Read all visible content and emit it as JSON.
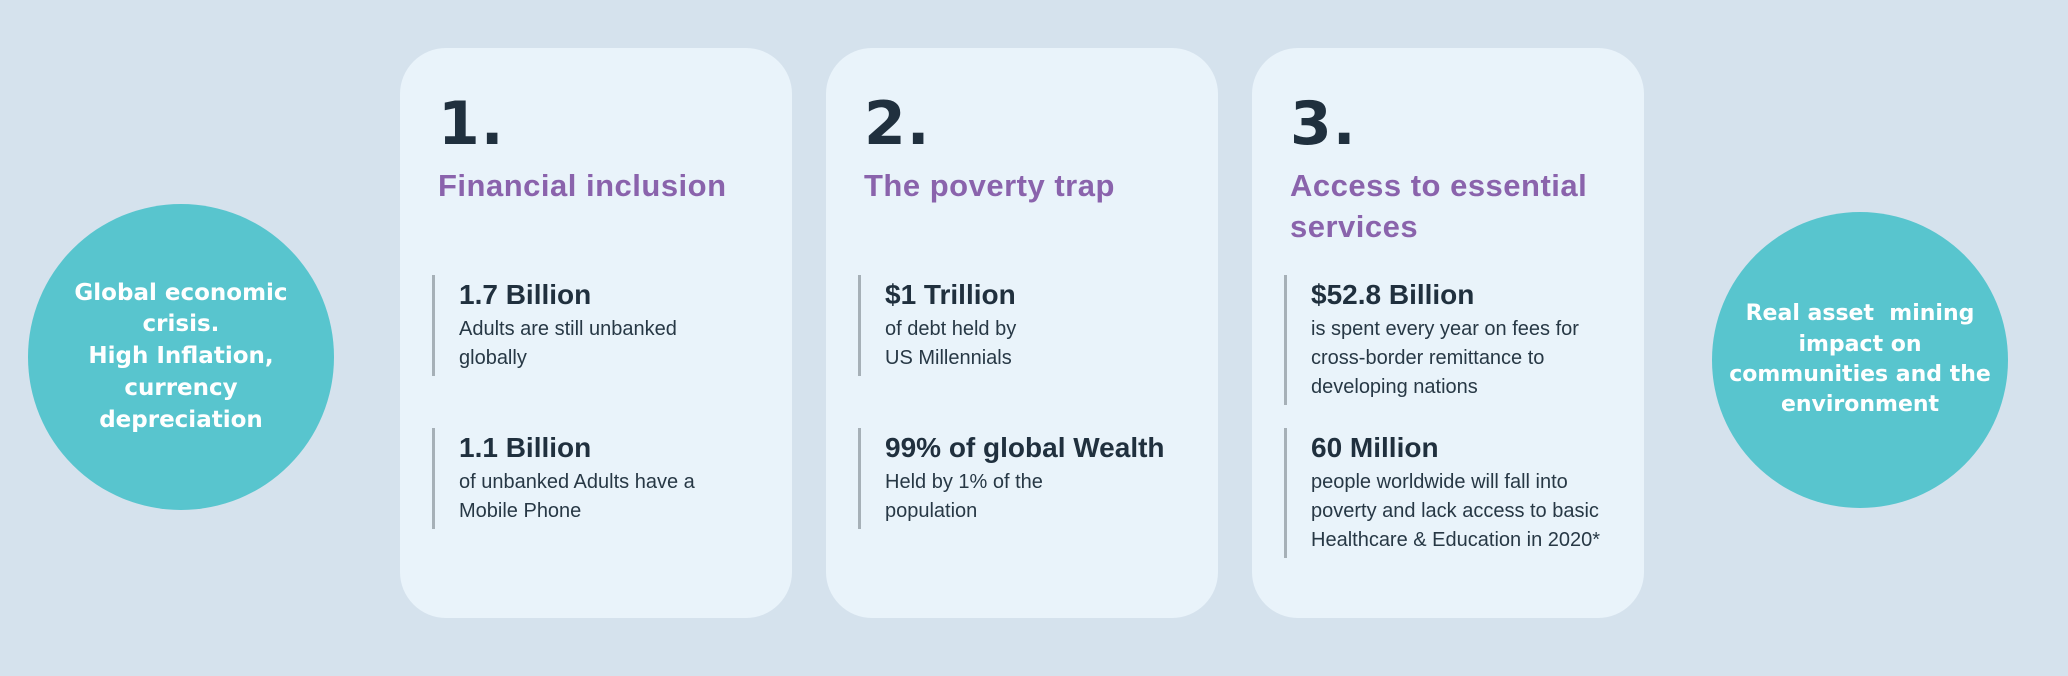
{
  "colors": {
    "page_background": "#d5e2ed",
    "card_background": "#e9f3fa",
    "circle_teal": "#58c5ce",
    "heading_purple": "#8a63ac",
    "text_dark_navy": "#20303e",
    "text_body": "#273845",
    "divider_gray": "#a6b0b7",
    "circle_text_white": "#ffffff"
  },
  "left_circle": {
    "text": "Global economic\ncrisis.\nHigh Inflation,\ncurrency\ndepreciation"
  },
  "right_circle": {
    "text": "Real asset  mining\nimpact on\ncommunities and the\nenvironment"
  },
  "cards": [
    {
      "number": "1.",
      "title": "Financial inclusion",
      "stats": [
        {
          "value": "1.7 Billion",
          "description": "Adults are still unbanked\nglobally"
        },
        {
          "value": "1.1 Billion",
          "description": "of unbanked Adults have a\nMobile Phone"
        }
      ]
    },
    {
      "number": "2.",
      "title": "The poverty trap",
      "stats": [
        {
          "value": "$1 Trillion",
          "description": "of debt held by\nUS Millennials"
        },
        {
          "value": "99% of global Wealth",
          "description": "Held by 1% of the\npopulation"
        }
      ]
    },
    {
      "number": "3.",
      "title": "Access to essential\nservices",
      "stats": [
        {
          "value": "$52.8 Billion",
          "description": "is spent every year on fees for\ncross-border remittance to\ndeveloping nations"
        },
        {
          "value": "60 Million",
          "description": "people worldwide will fall into\npoverty and lack access to basic\nHealthcare & Education in 2020*"
        }
      ]
    }
  ]
}
